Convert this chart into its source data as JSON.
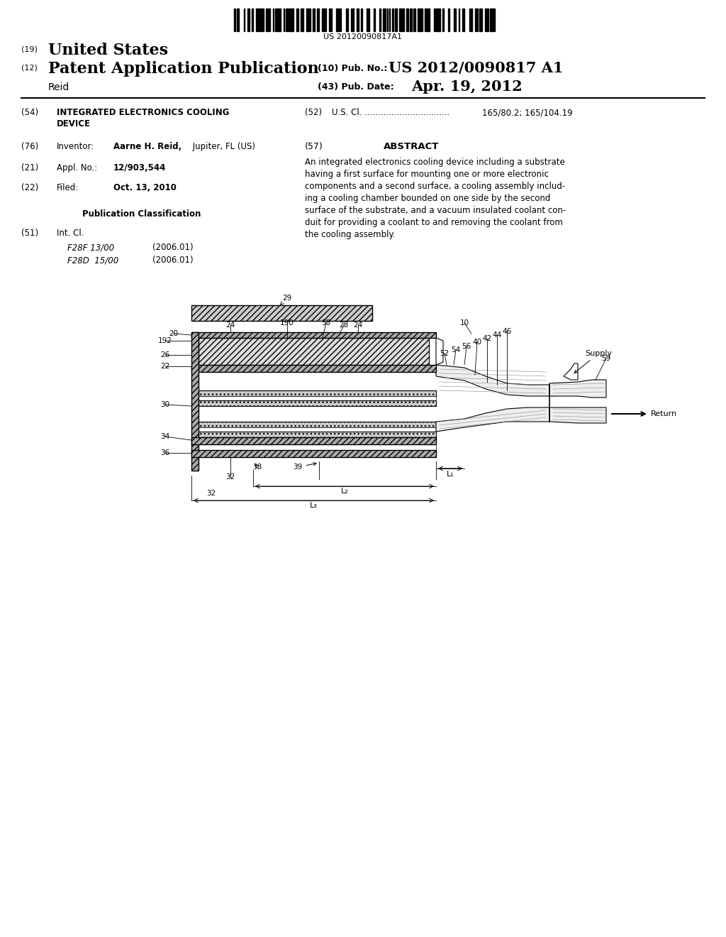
{
  "background_color": "#ffffff",
  "barcode_text": "US 20120090817A1",
  "patent_number": "US 2012/0090817 A1",
  "pub_date": "Apr. 19, 2012",
  "country": "United States",
  "kind": "Patent Application Publication",
  "pub_num_label": "(10) Pub. No.:",
  "pub_date_label": "(43) Pub. Date:",
  "abstract_lines": [
    "An integrated electronics cooling device including a substrate",
    "having a first surface for mounting one or more electronic",
    "components and a second surface, a cooling assembly includ-",
    "ing a cooling chamber bounded on one side by the second",
    "surface of the substrate, and a vacuum insulated coolant con-",
    "duit for providing a coolant to and removing the coolant from",
    "the cooling assembly."
  ]
}
